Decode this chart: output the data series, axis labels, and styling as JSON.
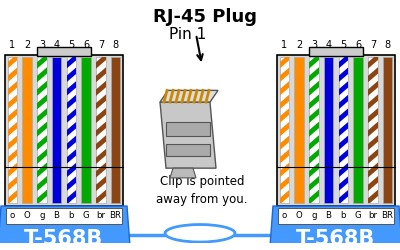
{
  "bg_color": "#ffffff",
  "wire_colors": [
    "#ffffff",
    "#ff8c00",
    "#ffffff",
    "#0000dd",
    "#ffffff",
    "#00aa00",
    "#ffffff",
    "#8B4513"
  ],
  "wire_stripe_colors": [
    "#ff8c00",
    null,
    "#00aa00",
    null,
    "#0000dd",
    null,
    "#8B4513",
    null
  ],
  "wire_labels": [
    "o",
    "O",
    "g",
    "B",
    "b",
    "G",
    "br",
    "BR"
  ],
  "pin_numbers": [
    "1",
    "2",
    "3",
    "4",
    "5",
    "6",
    "7",
    "8"
  ],
  "title": "RJ-45 Plug",
  "pin_label": "Pin 1",
  "clip_text": "Clip is pointed\naway from you.",
  "standard_label": "T-568B",
  "body_color": "#d8d8d8",
  "blue_color": "#4499ff",
  "blue_dark": "#2266cc"
}
